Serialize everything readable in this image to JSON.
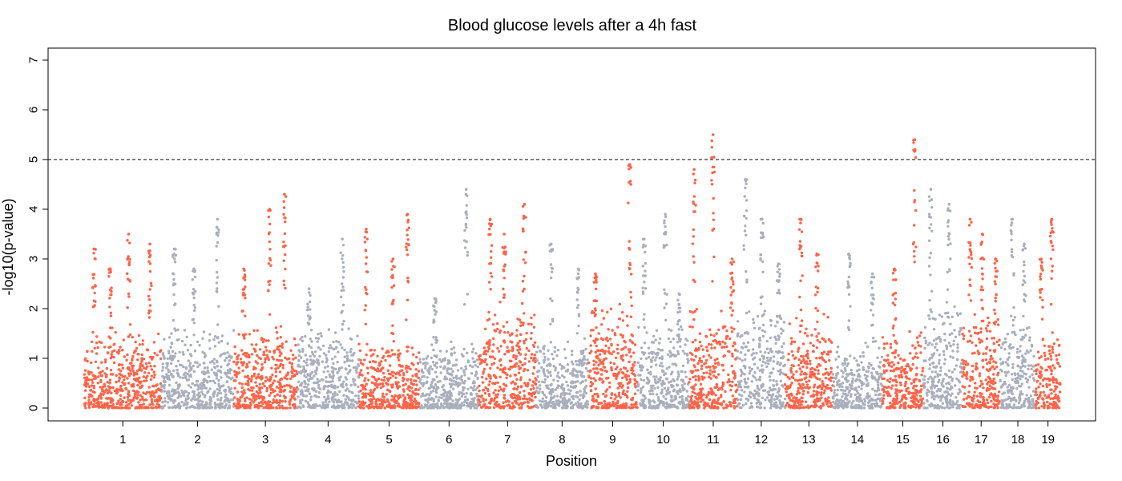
{
  "chart_data": {
    "type": "scatter",
    "title": "Blood glucose levels after a 4h fast",
    "xlabel": "Position",
    "ylabel": "-log10(p-value)",
    "ylim": [
      0,
      7
    ],
    "yticks": [
      "0",
      "1",
      "2",
      "3",
      "4",
      "5",
      "6",
      "7"
    ],
    "threshold": 5,
    "threshold_style": "dashed",
    "colors": {
      "odd": "#FF6347",
      "even": "#A9AFBC",
      "axis": "#000000"
    },
    "chromosomes": [
      {
        "label": "1",
        "color": "#FF6347",
        "base": 1.5,
        "peaks": [
          3.2,
          2.8,
          3.5,
          3.3
        ]
      },
      {
        "label": "2",
        "color": "#A9AFBC",
        "base": 1.6,
        "peaks": [
          3.2,
          2.8,
          3.8
        ]
      },
      {
        "label": "3",
        "color": "#FF6347",
        "base": 1.6,
        "peaks": [
          2.8,
          4.0,
          4.3
        ]
      },
      {
        "label": "4",
        "color": "#A9AFBC",
        "base": 1.6,
        "peaks": [
          2.4,
          3.4
        ]
      },
      {
        "label": "5",
        "color": "#FF6347",
        "base": 1.3,
        "peaks": [
          3.6,
          3.0,
          3.9
        ]
      },
      {
        "label": "6",
        "color": "#A9AFBC",
        "base": 1.3,
        "peaks": [
          2.2,
          4.4
        ]
      },
      {
        "label": "7",
        "color": "#FF6347",
        "base": 2.0,
        "peaks": [
          3.8,
          3.5,
          4.1
        ]
      },
      {
        "label": "8",
        "color": "#A9AFBC",
        "base": 1.4,
        "peaks": [
          3.3,
          2.8
        ]
      },
      {
        "label": "9",
        "color": "#FF6347",
        "base": 2.0,
        "peaks": [
          2.7,
          4.9
        ]
      },
      {
        "label": "10",
        "color": "#A9AFBC",
        "base": 1.6,
        "peaks": [
          3.4,
          3.9,
          2.3
        ]
      },
      {
        "label": "11",
        "color": "#FF6347",
        "base": 2.0,
        "peaks": [
          4.8,
          5.5,
          3.0
        ]
      },
      {
        "label": "12",
        "color": "#A9AFBC",
        "base": 2.0,
        "peaks": [
          4.6,
          3.8,
          2.9
        ]
      },
      {
        "label": "13",
        "color": "#FF6347",
        "base": 1.8,
        "peaks": [
          3.8,
          3.1
        ]
      },
      {
        "label": "14",
        "color": "#A9AFBC",
        "base": 1.3,
        "peaks": [
          3.1,
          2.7
        ]
      },
      {
        "label": "15",
        "color": "#FF6347",
        "base": 1.5,
        "peaks": [
          2.8,
          5.4
        ]
      },
      {
        "label": "16",
        "color": "#A9AFBC",
        "base": 2.2,
        "peaks": [
          4.4,
          4.1
        ]
      },
      {
        "label": "17",
        "color": "#FF6347",
        "base": 1.9,
        "peaks": [
          3.8,
          3.5,
          3.0
        ]
      },
      {
        "label": "18",
        "color": "#A9AFBC",
        "base": 1.7,
        "peaks": [
          3.8,
          3.3
        ]
      },
      {
        "label": "19",
        "color": "#FF6347",
        "base": 1.4,
        "peaks": [
          3.0,
          3.8
        ]
      }
    ]
  }
}
